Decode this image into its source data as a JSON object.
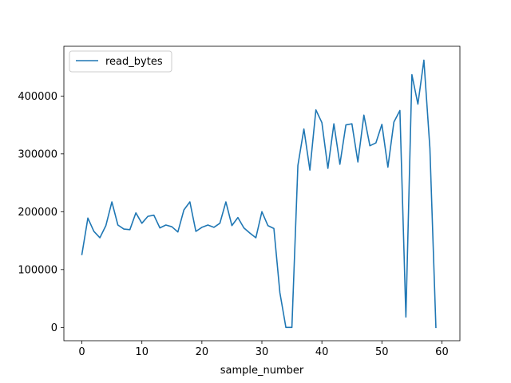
{
  "chart_data": {
    "type": "line",
    "title": "",
    "xlabel": "sample_number",
    "ylabel": "",
    "xlim": [
      -3,
      63
    ],
    "ylim": [
      -23000,
      486000
    ],
    "x_ticks": [
      0,
      10,
      20,
      30,
      40,
      50,
      60
    ],
    "y_ticks": [
      0,
      100000,
      200000,
      300000,
      400000
    ],
    "grid": false,
    "legend": "top-left",
    "colors": {
      "series": "#1f77b4"
    },
    "series": [
      {
        "name": "read_bytes",
        "x": [
          0,
          1,
          2,
          3,
          4,
          5,
          6,
          7,
          8,
          9,
          10,
          11,
          12,
          13,
          14,
          15,
          16,
          17,
          18,
          19,
          20,
          21,
          22,
          23,
          24,
          25,
          26,
          27,
          28,
          29,
          30,
          31,
          32,
          33,
          34,
          35,
          36,
          37,
          38,
          39,
          40,
          41,
          42,
          43,
          44,
          45,
          46,
          47,
          48,
          49,
          50,
          51,
          52,
          53,
          54,
          55,
          56,
          57,
          58,
          59
        ],
        "values": [
          126000,
          189000,
          166000,
          155000,
          176000,
          217000,
          177000,
          170000,
          169000,
          198000,
          180000,
          192000,
          194000,
          172000,
          177000,
          174000,
          165000,
          203000,
          217000,
          166000,
          173000,
          177000,
          173000,
          180000,
          217000,
          176000,
          190000,
          172000,
          163000,
          155000,
          200000,
          176000,
          171000,
          60000,
          0,
          0,
          280000,
          343000,
          272000,
          376000,
          354000,
          275000,
          352000,
          282000,
          350000,
          352000,
          286000,
          367000,
          314000,
          319000,
          351000,
          277000,
          355000,
          375000,
          18000,
          437000,
          386000,
          462000,
          310000,
          0
        ]
      }
    ]
  }
}
